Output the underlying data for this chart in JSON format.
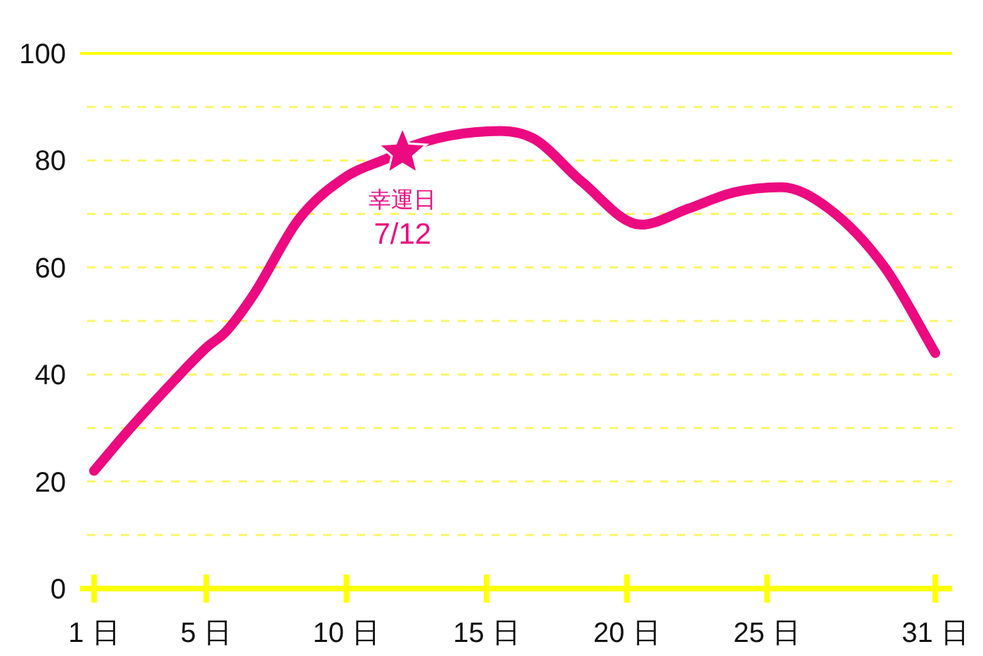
{
  "chart_data": {
    "type": "line",
    "x": [
      1,
      2.3,
      3.7,
      5,
      5.7,
      6.7,
      8.3,
      10,
      11.7,
      12,
      15.5,
      16.7,
      18.4,
      20.5,
      22.2,
      23.8,
      25.5,
      27.2,
      29.2,
      31
    ],
    "series": [
      {
        "color": "#ec0a80",
        "values": [
          22,
          30,
          38,
          45,
          48,
          55,
          69,
          77,
          81,
          82,
          85.5,
          84,
          76,
          68,
          71,
          74,
          75,
          71,
          60,
          44
        ]
      }
    ],
    "xlim": [
      0.5,
      31.6
    ],
    "xticks": [
      {
        "value": 1,
        "label": "1 日"
      },
      {
        "value": 5,
        "label": "5 日"
      },
      {
        "value": 10,
        "label": "10 日"
      },
      {
        "value": 15,
        "label": "15 日"
      },
      {
        "value": 20,
        "label": "20 日"
      },
      {
        "value": 25,
        "label": "25 日"
      },
      {
        "value": 31,
        "label": "31 日"
      }
    ],
    "ylim": [
      0,
      100
    ],
    "yticks": [
      0,
      {
        "value": 10,
        "label": null
      },
      20,
      {
        "value": 30,
        "label": null
      },
      40,
      {
        "value": 50,
        "label": null
      },
      60,
      {
        "value": 70,
        "label": null
      },
      80,
      {
        "value": 90,
        "label": null
      },
      100
    ],
    "grid": "y",
    "marker": "none",
    "line_style": "solid",
    "annotations": [
      {
        "text": "幸運日\n7/12",
        "x": 12,
        "y": 82
      }
    ]
  }
}
